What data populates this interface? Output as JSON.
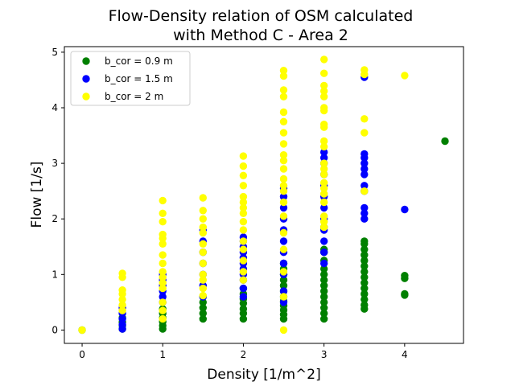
{
  "chart_data": {
    "type": "scatter",
    "title_line1": "Flow-Density relation of OSM calculated",
    "title_line2": "with Method C - Area 2",
    "xlabel": "Density [1/m^2]",
    "ylabel": "Flow [1/s]",
    "xlim": [
      -0.22,
      4.73
    ],
    "ylim": [
      -0.24,
      5.1
    ],
    "xticks": [
      0,
      1,
      2,
      3,
      4
    ],
    "yticks": [
      0,
      1,
      2,
      3,
      4,
      5
    ],
    "legend_position": "top-left",
    "series": [
      {
        "name": "b_cor = 0.9 m",
        "color": "#008000",
        "points": [
          [
            0,
            0
          ],
          [
            0.5,
            0.02
          ],
          [
            0.5,
            0.08
          ],
          [
            0.5,
            0.14
          ],
          [
            0.5,
            0.22
          ],
          [
            1,
            0.02
          ],
          [
            1,
            0.08
          ],
          [
            1,
            0.15
          ],
          [
            1,
            0.22
          ],
          [
            1,
            0.3
          ],
          [
            1,
            0.38
          ],
          [
            1.5,
            0.2
          ],
          [
            1.5,
            0.3
          ],
          [
            1.5,
            0.4
          ],
          [
            1.5,
            0.5
          ],
          [
            1.5,
            0.6
          ],
          [
            2,
            0.2
          ],
          [
            2,
            0.3
          ],
          [
            2,
            0.38
          ],
          [
            2,
            0.48
          ],
          [
            2,
            0.56
          ],
          [
            2,
            0.65
          ],
          [
            2,
            0.75
          ],
          [
            2.5,
            0.2
          ],
          [
            2.5,
            0.28
          ],
          [
            2.5,
            0.36
          ],
          [
            2.5,
            0.44
          ],
          [
            2.5,
            0.52
          ],
          [
            2.5,
            0.6
          ],
          [
            2.5,
            0.7
          ],
          [
            2.5,
            0.8
          ],
          [
            2.5,
            0.9
          ],
          [
            2.5,
            1.0
          ],
          [
            2.5,
            1.1
          ],
          [
            2.5,
            1.2
          ],
          [
            3,
            0.2
          ],
          [
            3,
            0.3
          ],
          [
            3,
            0.4
          ],
          [
            3,
            0.5
          ],
          [
            3,
            0.6
          ],
          [
            3,
            0.7
          ],
          [
            3,
            0.8
          ],
          [
            3,
            0.9
          ],
          [
            3,
            1.0
          ],
          [
            3,
            1.1
          ],
          [
            3,
            1.25
          ],
          [
            3,
            1.4
          ],
          [
            3,
            1.45
          ],
          [
            3,
            1.85
          ],
          [
            3.5,
            0.38
          ],
          [
            3.5,
            0.45
          ],
          [
            3.5,
            0.55
          ],
          [
            3.5,
            0.65
          ],
          [
            3.5,
            0.75
          ],
          [
            3.5,
            0.85
          ],
          [
            3.5,
            0.95
          ],
          [
            3.5,
            1.05
          ],
          [
            3.5,
            1.15
          ],
          [
            3.5,
            1.25
          ],
          [
            3.5,
            1.35
          ],
          [
            3.5,
            1.45
          ],
          [
            3.5,
            1.55
          ],
          [
            3.5,
            1.6
          ],
          [
            4,
            0.63
          ],
          [
            4,
            0.65
          ],
          [
            4,
            0.93
          ],
          [
            4,
            0.98
          ],
          [
            4.5,
            3.4
          ]
        ]
      },
      {
        "name": "b_cor = 1.5 m",
        "color": "#0000ff",
        "points": [
          [
            0.5,
            0.02
          ],
          [
            0.5,
            0.1
          ],
          [
            0.5,
            0.2
          ],
          [
            0.5,
            0.3
          ],
          [
            0.5,
            0.4
          ],
          [
            1,
            0.5
          ],
          [
            1,
            0.6
          ],
          [
            1,
            0.7
          ],
          [
            1,
            0.8
          ],
          [
            1,
            0.9
          ],
          [
            1,
            1.0
          ],
          [
            1.5,
            0.6
          ],
          [
            1.5,
            0.8
          ],
          [
            1.5,
            1.0
          ],
          [
            1.5,
            1.2
          ],
          [
            1.5,
            1.4
          ],
          [
            1.5,
            1.6
          ],
          [
            1.5,
            1.8
          ],
          [
            2,
            0.6
          ],
          [
            2,
            0.75
          ],
          [
            2,
            0.9
          ],
          [
            2,
            1.0
          ],
          [
            2,
            1.1
          ],
          [
            2,
            1.2
          ],
          [
            2,
            1.3
          ],
          [
            2,
            1.4
          ],
          [
            2,
            1.5
          ],
          [
            2,
            1.6
          ],
          [
            2,
            1.67
          ],
          [
            2.5,
            0.5
          ],
          [
            2.5,
            0.7
          ],
          [
            2.5,
            1.0
          ],
          [
            2.5,
            1.2
          ],
          [
            2.5,
            1.4
          ],
          [
            2.5,
            1.6
          ],
          [
            2.5,
            1.8
          ],
          [
            2.5,
            2.0
          ],
          [
            2.5,
            2.2
          ],
          [
            2.5,
            2.4
          ],
          [
            2.5,
            2.55
          ],
          [
            3,
            1.2
          ],
          [
            3,
            1.4
          ],
          [
            3,
            1.6
          ],
          [
            3,
            1.8
          ],
          [
            3,
            2.0
          ],
          [
            3,
            2.2
          ],
          [
            3,
            2.4
          ],
          [
            3,
            2.6
          ],
          [
            3,
            2.8
          ],
          [
            3,
            3.0
          ],
          [
            3,
            3.1
          ],
          [
            3,
            3.2
          ],
          [
            3.5,
            2.0
          ],
          [
            3.5,
            2.1
          ],
          [
            3.5,
            2.2
          ],
          [
            3.5,
            2.5
          ],
          [
            3.5,
            2.6
          ],
          [
            3.5,
            2.8
          ],
          [
            3.5,
            2.9
          ],
          [
            3.5,
            3.0
          ],
          [
            3.5,
            3.1
          ],
          [
            3.5,
            3.17
          ],
          [
            3.5,
            4.55
          ],
          [
            4,
            2.17
          ]
        ]
      },
      {
        "name": "b_cor = 2 m",
        "color": "#ffff00",
        "points": [
          [
            0,
            0
          ],
          [
            0.5,
            0.35
          ],
          [
            0.5,
            0.45
          ],
          [
            0.5,
            0.55
          ],
          [
            0.5,
            0.65
          ],
          [
            0.5,
            0.72
          ],
          [
            0.5,
            0.95
          ],
          [
            0.5,
            1.02
          ],
          [
            1,
            0.2
          ],
          [
            1,
            0.35
          ],
          [
            1,
            0.5
          ],
          [
            1,
            0.75
          ],
          [
            1,
            0.85
          ],
          [
            1,
            0.95
          ],
          [
            1,
            1.05
          ],
          [
            1,
            1.2
          ],
          [
            1,
            1.35
          ],
          [
            1,
            1.55
          ],
          [
            1,
            1.65
          ],
          [
            1,
            1.72
          ],
          [
            1,
            1.95
          ],
          [
            1,
            2.1
          ],
          [
            1,
            2.33
          ],
          [
            1.5,
            0.62
          ],
          [
            1.5,
            0.75
          ],
          [
            1.5,
            0.9
          ],
          [
            1.5,
            1.0
          ],
          [
            1.5,
            1.2
          ],
          [
            1.5,
            1.4
          ],
          [
            1.5,
            1.55
          ],
          [
            1.5,
            1.75
          ],
          [
            1.5,
            1.85
          ],
          [
            1.5,
            2.0
          ],
          [
            1.5,
            2.15
          ],
          [
            1.5,
            2.38
          ],
          [
            2,
            0.9
          ],
          [
            2,
            1.05
          ],
          [
            2,
            1.25
          ],
          [
            2,
            1.45
          ],
          [
            2,
            1.6
          ],
          [
            2,
            1.8
          ],
          [
            2,
            1.95
          ],
          [
            2,
            2.1
          ],
          [
            2,
            2.2
          ],
          [
            2,
            2.3
          ],
          [
            2,
            2.4
          ],
          [
            2,
            2.6
          ],
          [
            2,
            2.78
          ],
          [
            2,
            2.95
          ],
          [
            2,
            3.13
          ],
          [
            2.5,
            0
          ],
          [
            2.5,
            0.6
          ],
          [
            2.5,
            1.05
          ],
          [
            2.5,
            1.45
          ],
          [
            2.5,
            1.75
          ],
          [
            2.5,
            2.05
          ],
          [
            2.5,
            2.3
          ],
          [
            2.5,
            2.5
          ],
          [
            2.5,
            2.6
          ],
          [
            2.5,
            2.72
          ],
          [
            2.5,
            2.9
          ],
          [
            2.5,
            3.05
          ],
          [
            2.5,
            3.15
          ],
          [
            2.5,
            3.35
          ],
          [
            2.5,
            3.55
          ],
          [
            2.5,
            3.75
          ],
          [
            2.5,
            3.92
          ],
          [
            2.5,
            4.2
          ],
          [
            2.5,
            4.32
          ],
          [
            2.5,
            4.57
          ],
          [
            2.5,
            4.67
          ],
          [
            3,
            1.85
          ],
          [
            3,
            1.95
          ],
          [
            3,
            2.05
          ],
          [
            3,
            2.3
          ],
          [
            3,
            2.45
          ],
          [
            3,
            2.55
          ],
          [
            3,
            2.65
          ],
          [
            3,
            2.8
          ],
          [
            3,
            2.9
          ],
          [
            3,
            3.0
          ],
          [
            3,
            3.3
          ],
          [
            3,
            3.4
          ],
          [
            3,
            3.65
          ],
          [
            3,
            3.7
          ],
          [
            3,
            3.95
          ],
          [
            3,
            4.0
          ],
          [
            3,
            4.2
          ],
          [
            3,
            4.3
          ],
          [
            3,
            4.4
          ],
          [
            3,
            4.62
          ],
          [
            3,
            4.87
          ],
          [
            3.5,
            2.5
          ],
          [
            3.5,
            3.55
          ],
          [
            3.5,
            3.8
          ],
          [
            3.5,
            4.6
          ],
          [
            3.5,
            4.68
          ],
          [
            4,
            4.58
          ]
        ]
      }
    ]
  }
}
